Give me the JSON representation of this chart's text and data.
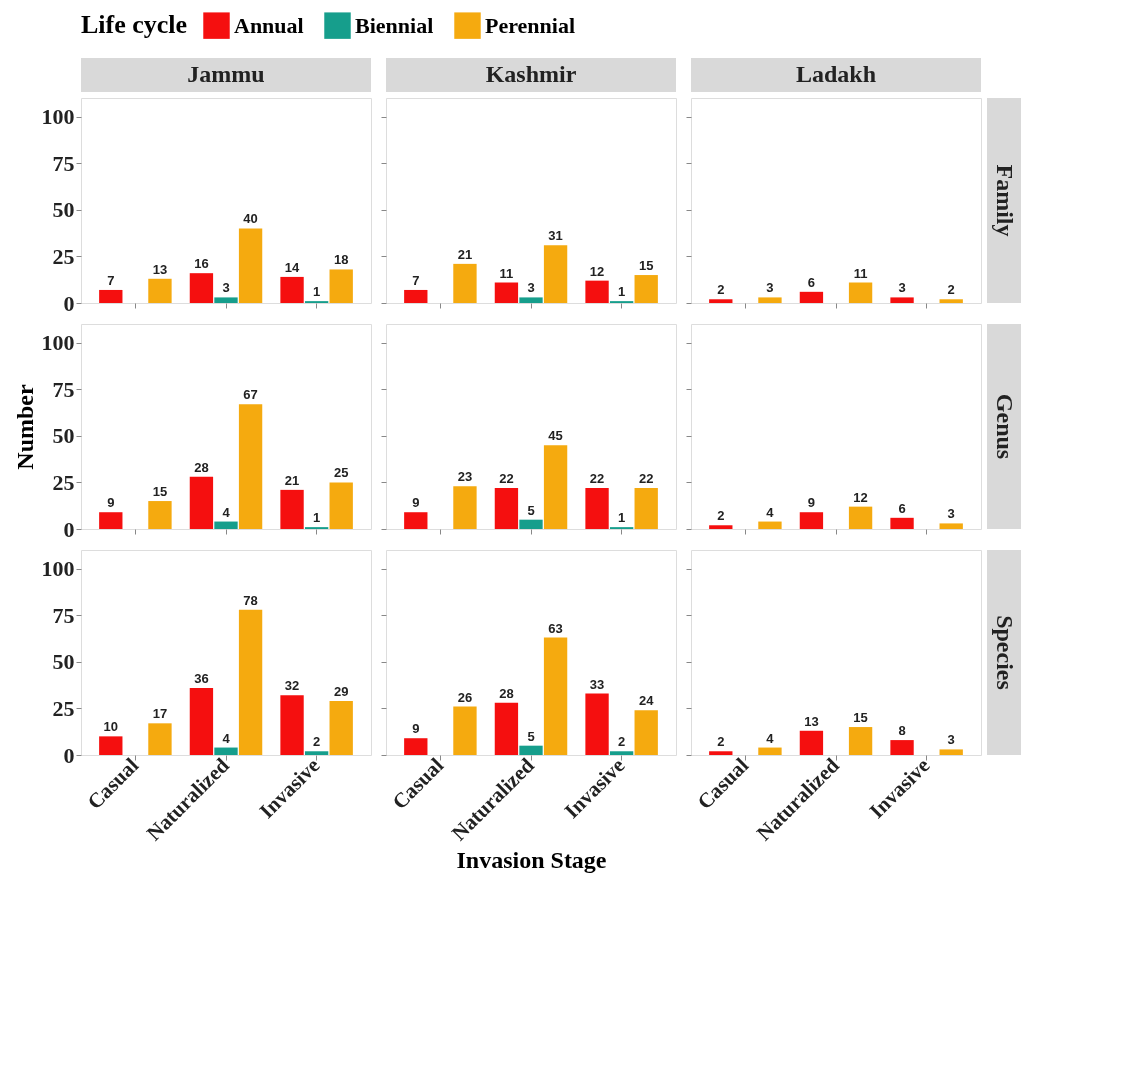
{
  "chart_data": [
    {
      "type": "bar",
      "title": "Jammu",
      "y2label": null,
      "legend_title": "Life cycle",
      "legend": "top",
      "categories": [
        "Casual",
        "Naturalized",
        "Invasive"
      ],
      "ylim": [
        0,
        110
      ],
      "yticks": [
        0,
        25,
        50,
        75,
        100
      ],
      "data_labels": true,
      "tick_labels": "y",
      "series": [
        {
          "name": "Annual",
          "color": "#f50f0f",
          "values": [
            7,
            16,
            14
          ]
        },
        {
          "name": "Biennial",
          "color": "#169e8c",
          "values": [
            null,
            3,
            1
          ]
        },
        {
          "name": "Perennial",
          "color": "#f5aa0f",
          "values": [
            13,
            40,
            18
          ]
        }
      ]
    },
    {
      "type": "bar",
      "title": "Kashmir",
      "categories": [
        "Casual",
        "Naturalized",
        "Invasive"
      ],
      "ylim": [
        0,
        110
      ],
      "yticks": [
        0,
        25,
        50,
        75,
        100
      ],
      "data_labels": true,
      "tick_labels": false,
      "series": [
        {
          "name": "Annual",
          "color": "#f50f0f",
          "values": [
            7,
            11,
            12
          ]
        },
        {
          "name": "Biennial",
          "color": "#169e8c",
          "values": [
            null,
            3,
            1
          ]
        },
        {
          "name": "Perennial",
          "color": "#f5aa0f",
          "values": [
            21,
            31,
            15
          ]
        }
      ]
    },
    {
      "type": "bar",
      "title": "Ladakh",
      "y2label": "Family",
      "categories": [
        "Casual",
        "Naturalized",
        "Invasive"
      ],
      "ylim": [
        0,
        110
      ],
      "yticks": [
        0,
        25,
        50,
        75,
        100
      ],
      "data_labels": true,
      "tick_labels": false,
      "series": [
        {
          "name": "Annual",
          "color": "#f50f0f",
          "values": [
            2,
            6,
            3
          ]
        },
        {
          "name": "Biennial",
          "color": "#169e8c",
          "values": [
            null,
            null,
            null
          ]
        },
        {
          "name": "Perennial",
          "color": "#f5aa0f",
          "values": [
            3,
            11,
            2
          ]
        }
      ]
    },
    {
      "type": "bar",
      "ylabel": "Number",
      "categories": [
        "Casual",
        "Naturalized",
        "Invasive"
      ],
      "ylim": [
        0,
        110
      ],
      "yticks": [
        0,
        25,
        50,
        75,
        100
      ],
      "data_labels": true,
      "tick_labels": "y",
      "series": [
        {
          "name": "Annual",
          "color": "#f50f0f",
          "values": [
            9,
            28,
            21
          ]
        },
        {
          "name": "Biennial",
          "color": "#169e8c",
          "values": [
            null,
            4,
            1
          ]
        },
        {
          "name": "Perennial",
          "color": "#f5aa0f",
          "values": [
            15,
            67,
            25
          ]
        }
      ]
    },
    {
      "type": "bar",
      "categories": [
        "Casual",
        "Naturalized",
        "Invasive"
      ],
      "ylim": [
        0,
        110
      ],
      "yticks": [
        0,
        25,
        50,
        75,
        100
      ],
      "data_labels": true,
      "tick_labels": false,
      "series": [
        {
          "name": "Annual",
          "color": "#f50f0f",
          "values": [
            9,
            22,
            22
          ]
        },
        {
          "name": "Biennial",
          "color": "#169e8c",
          "values": [
            null,
            5,
            1
          ]
        },
        {
          "name": "Perennial",
          "color": "#f5aa0f",
          "values": [
            23,
            45,
            22
          ]
        }
      ]
    },
    {
      "type": "bar",
      "y2label": "Genus",
      "categories": [
        "Casual",
        "Naturalized",
        "Invasive"
      ],
      "ylim": [
        0,
        110
      ],
      "yticks": [
        0,
        25,
        50,
        75,
        100
      ],
      "data_labels": true,
      "tick_labels": false,
      "series": [
        {
          "name": "Annual",
          "color": "#f50f0f",
          "values": [
            2,
            9,
            6
          ]
        },
        {
          "name": "Biennial",
          "color": "#169e8c",
          "values": [
            null,
            null,
            null
          ]
        },
        {
          "name": "Perennial",
          "color": "#f5aa0f",
          "values": [
            4,
            12,
            3
          ]
        }
      ]
    },
    {
      "type": "bar",
      "categories": [
        "Casual",
        "Naturalized",
        "Invasive"
      ],
      "ylim": [
        0,
        110
      ],
      "yticks": [
        0,
        25,
        50,
        75,
        100
      ],
      "data_labels": true,
      "series": [
        {
          "name": "Annual",
          "color": "#f50f0f",
          "values": [
            10,
            36,
            32
          ]
        },
        {
          "name": "Biennial",
          "color": "#169e8c",
          "values": [
            null,
            4,
            2
          ]
        },
        {
          "name": "Perennial",
          "color": "#f5aa0f",
          "values": [
            17,
            78,
            29
          ]
        }
      ]
    },
    {
      "type": "bar",
      "xlabel": "Invasion Stage",
      "categories": [
        "Casual",
        "Naturalized",
        "Invasive"
      ],
      "ylim": [
        0,
        110
      ],
      "yticks": [
        0,
        25,
        50,
        75,
        100
      ],
      "data_labels": true,
      "tick_labels": "x",
      "series": [
        {
          "name": "Annual",
          "color": "#f50f0f",
          "values": [
            9,
            28,
            33
          ]
        },
        {
          "name": "Biennial",
          "color": "#169e8c",
          "values": [
            null,
            5,
            2
          ]
        },
        {
          "name": "Perennial",
          "color": "#f5aa0f",
          "values": [
            26,
            63,
            24
          ]
        }
      ]
    },
    {
      "type": "bar",
      "y2label": "Species",
      "categories": [
        "Casual",
        "Naturalized",
        "Invasive"
      ],
      "ylim": [
        0,
        110
      ],
      "yticks": [
        0,
        25,
        50,
        75,
        100
      ],
      "data_labels": true,
      "tick_labels": "x",
      "series": [
        {
          "name": "Annual",
          "color": "#f50f0f",
          "values": [
            2,
            13,
            8
          ]
        },
        {
          "name": "Biennial",
          "color": "#169e8c",
          "values": [
            null,
            null,
            null
          ]
        },
        {
          "name": "Perennial",
          "color": "#f5aa0f",
          "values": [
            4,
            15,
            3
          ]
        }
      ]
    }
  ]
}
